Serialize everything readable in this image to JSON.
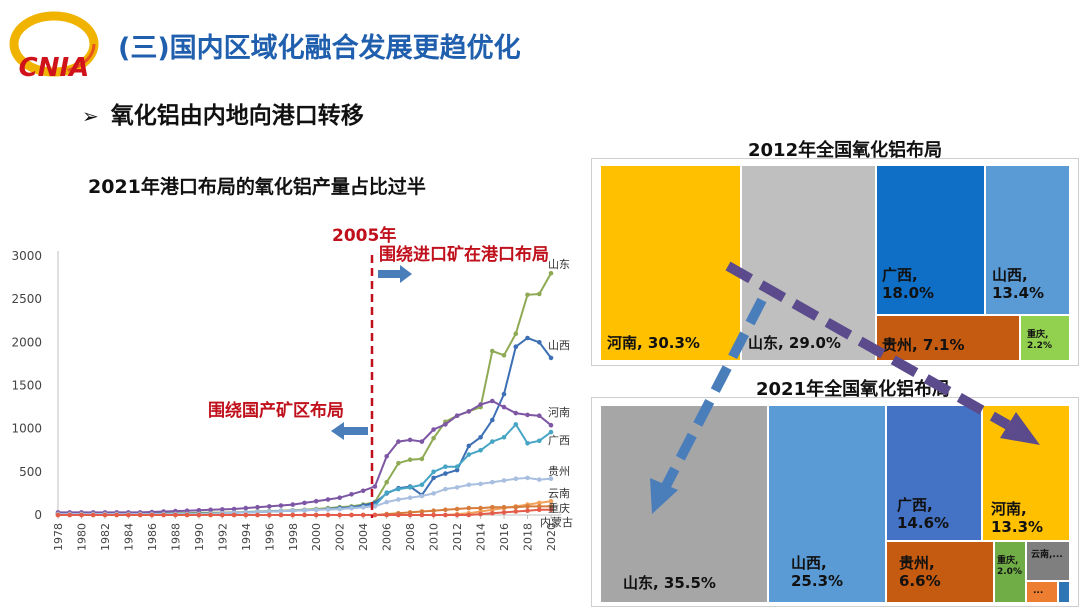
{
  "header": {
    "logo_text": "CNIA",
    "title": "(三)国内区域化融合发展更趋优化",
    "bullet": "氧化铝由内地向港口转移",
    "bullet_marker": "➢"
  },
  "colors": {
    "title_blue": "#1f5fae",
    "annotation_red": "#c0101b",
    "arrow_blue": "#4a7ebb",
    "dash_purple": "#5b4a8c"
  },
  "annotations": {
    "year_label": "2005年",
    "right_label": "围绕进口矿在港口布局",
    "left_label": "围绕国产矿区布局"
  },
  "chart_data": [
    {
      "type": "line",
      "title": "2021年港口布局的氧化铝产量占比过半",
      "x": [
        1978,
        1979,
        1980,
        1981,
        1982,
        1983,
        1984,
        1985,
        1986,
        1987,
        1988,
        1989,
        1990,
        1991,
        1992,
        1993,
        1994,
        1995,
        1996,
        1997,
        1998,
        1999,
        2000,
        2001,
        2002,
        2003,
        2004,
        2005,
        2006,
        2007,
        2008,
        2009,
        2010,
        2011,
        2012,
        2013,
        2014,
        2015,
        2016,
        2017,
        2018,
        2019,
        2020
      ],
      "x_tick_labels": [
        "1978",
        "1980",
        "1982",
        "1984",
        "1986",
        "1988",
        "1990",
        "1992",
        "1994",
        "1996",
        "1998",
        "2000",
        "2002",
        "2004",
        "2006",
        "2008",
        "2010",
        "2012",
        "2014",
        "2016",
        "2018",
        "2020"
      ],
      "y_ticks": [
        0,
        500,
        1000,
        1500,
        2000,
        2500,
        3000
      ],
      "ylim": [
        0,
        3000
      ],
      "series": [
        {
          "name": "山东",
          "color": "#8faa55",
          "values": [
            20,
            20,
            20,
            20,
            20,
            20,
            20,
            20,
            20,
            20,
            20,
            20,
            25,
            25,
            28,
            30,
            35,
            40,
            45,
            50,
            55,
            60,
            70,
            80,
            90,
            100,
            120,
            150,
            380,
            600,
            640,
            650,
            890,
            1080,
            1150,
            1200,
            1250,
            1900,
            1850,
            2100,
            2550,
            2560,
            2800
          ]
        },
        {
          "name": "山西",
          "color": "#3c6fb4",
          "values": [
            15,
            15,
            15,
            15,
            15,
            15,
            15,
            15,
            15,
            15,
            15,
            15,
            15,
            18,
            20,
            25,
            30,
            35,
            40,
            45,
            50,
            55,
            60,
            70,
            80,
            90,
            110,
            140,
            250,
            310,
            330,
            230,
            430,
            480,
            520,
            800,
            900,
            1100,
            1400,
            1950,
            2050,
            2000,
            1820
          ]
        },
        {
          "name": "河南",
          "color": "#7d56a4",
          "values": [
            30,
            30,
            30,
            30,
            30,
            30,
            30,
            30,
            35,
            40,
            45,
            50,
            55,
            60,
            65,
            70,
            80,
            90,
            100,
            110,
            120,
            140,
            160,
            180,
            200,
            240,
            280,
            330,
            680,
            850,
            870,
            850,
            990,
            1050,
            1150,
            1200,
            1280,
            1320,
            1250,
            1180,
            1160,
            1150,
            1040
          ]
        },
        {
          "name": "广西",
          "color": "#46a5c5",
          "values": [
            10,
            10,
            10,
            10,
            10,
            10,
            10,
            10,
            10,
            10,
            10,
            10,
            12,
            15,
            20,
            25,
            30,
            35,
            40,
            45,
            50,
            55,
            60,
            65,
            70,
            80,
            90,
            110,
            260,
            300,
            320,
            350,
            500,
            560,
            560,
            700,
            750,
            850,
            900,
            1050,
            830,
            860,
            960
          ]
        },
        {
          "name": "贵州",
          "color": "#a9bfe0",
          "values": [
            10,
            10,
            10,
            10,
            10,
            10,
            10,
            10,
            10,
            10,
            10,
            10,
            12,
            15,
            20,
            25,
            30,
            35,
            40,
            45,
            50,
            55,
            60,
            65,
            70,
            80,
            90,
            100,
            150,
            180,
            200,
            220,
            250,
            300,
            320,
            350,
            360,
            380,
            400,
            420,
            430,
            410,
            420
          ]
        },
        {
          "name": "云南",
          "color": "#f2a15a",
          "values": [
            0,
            0,
            0,
            0,
            0,
            0,
            0,
            0,
            0,
            0,
            0,
            0,
            0,
            0,
            0,
            0,
            0,
            0,
            0,
            0,
            0,
            0,
            0,
            0,
            0,
            0,
            0,
            0,
            0,
            0,
            0,
            0,
            0,
            0,
            10,
            20,
            40,
            60,
            80,
            100,
            120,
            140,
            160
          ]
        },
        {
          "name": "重庆",
          "color": "#d77b3a",
          "values": [
            0,
            0,
            0,
            0,
            0,
            0,
            0,
            0,
            0,
            0,
            0,
            0,
            0,
            0,
            0,
            0,
            0,
            0,
            0,
            0,
            0,
            0,
            0,
            0,
            0,
            0,
            0,
            0,
            10,
            20,
            30,
            40,
            50,
            60,
            70,
            80,
            80,
            90,
            90,
            90,
            100,
            100,
            100
          ]
        },
        {
          "name": "内蒙古",
          "color": "#e35d4a",
          "values": [
            0,
            0,
            0,
            0,
            0,
            0,
            0,
            0,
            0,
            0,
            0,
            0,
            0,
            0,
            0,
            0,
            0,
            0,
            0,
            0,
            0,
            0,
            0,
            0,
            0,
            0,
            0,
            0,
            0,
            0,
            0,
            0,
            0,
            0,
            0,
            0,
            10,
            20,
            30,
            40,
            50,
            60,
            60
          ]
        }
      ]
    },
    {
      "type": "treemap",
      "title": "2012年全国氧化铝布局",
      "items": [
        {
          "label": "河南, 30.3%",
          "value": 30.3,
          "color": "#ffc000"
        },
        {
          "label": "山东, 29.0%",
          "value": 29.0,
          "color": "#bfbfbf"
        },
        {
          "label": "广西, 18.0%",
          "value": 18.0,
          "color": "#0f6fc6"
        },
        {
          "label": "山西, 13.4%",
          "value": 13.4,
          "color": "#5b9bd5"
        },
        {
          "label": "贵州, 7.1%",
          "value": 7.1,
          "color": "#c55a11"
        },
        {
          "label": "重庆, 2.2%",
          "value": 2.2,
          "color": "#92d050"
        }
      ]
    },
    {
      "type": "treemap",
      "title": "2021年全国氧化铝布局",
      "items": [
        {
          "label": "山东, 35.5%",
          "value": 35.5,
          "color": "#a6a6a6"
        },
        {
          "label": "山西, 25.3%",
          "value": 25.3,
          "color": "#5b9bd5"
        },
        {
          "label": "广西, 14.6%",
          "value": 14.6,
          "color": "#4472c4"
        },
        {
          "label": "河南, 13.3%",
          "value": 13.3,
          "color": "#ffc000"
        },
        {
          "label": "贵州, 6.6%",
          "value": 6.6,
          "color": "#c55a11"
        },
        {
          "label": "重庆, 2.0%",
          "value": 2.0,
          "color": "#70ad47"
        },
        {
          "label": "云南,...",
          "value": 1.6,
          "color": "#7f7f7f"
        },
        {
          "label": "...",
          "value": 0.8,
          "color": "#ed7d31"
        },
        {
          "label": "",
          "value": 0.3,
          "color": "#2e75b6"
        }
      ]
    }
  ]
}
